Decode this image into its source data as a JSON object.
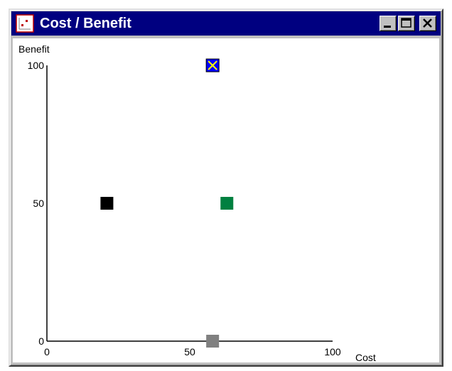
{
  "window": {
    "title": "Cost / Benefit",
    "icon": "chart-icon"
  },
  "titlebar_buttons": {
    "minimize": "minimize-icon",
    "maximize": "maximize-icon",
    "close": "close-icon"
  },
  "chart_data": {
    "type": "scatter",
    "xlabel": "Cost",
    "ylabel": "Benefit",
    "xlim": [
      0,
      100
    ],
    "ylim": [
      0,
      100
    ],
    "x_ticks": [
      "0",
      "50",
      "100"
    ],
    "y_ticks": [
      "0",
      "50",
      "100"
    ],
    "grid": false,
    "points": [
      {
        "x": 58,
        "y": 100,
        "color": "#0000ff",
        "marker": "crossed-square",
        "cross_color": "#ffff00"
      },
      {
        "x": 21,
        "y": 50,
        "color": "#000000",
        "marker": "square"
      },
      {
        "x": 63,
        "y": 50,
        "color": "#008040",
        "marker": "square"
      },
      {
        "x": 58,
        "y": 0,
        "color": "#808080",
        "marker": "square"
      }
    ]
  }
}
